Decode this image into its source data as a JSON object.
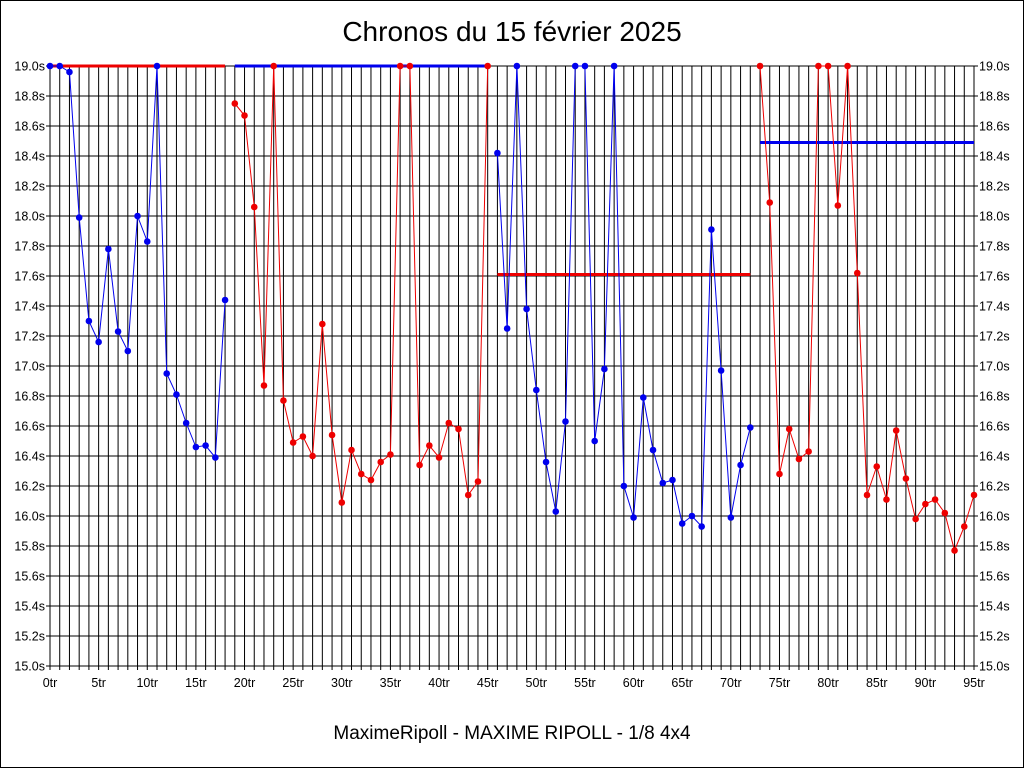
{
  "chart_data": {
    "type": "line",
    "title": "Chronos du 15 février 2025",
    "caption": "MaximeRipoll - MAXIME RIPOLL - 1/8 4x4",
    "x_unit": "tr",
    "y_unit": "s",
    "xlim": [
      0,
      95
    ],
    "ylim": [
      15.0,
      19.0
    ],
    "x_ticks": [
      0,
      5,
      10,
      15,
      20,
      25,
      30,
      35,
      40,
      45,
      50,
      55,
      60,
      65,
      70,
      75,
      80,
      85,
      90,
      95
    ],
    "y_ticks": [
      15.0,
      15.2,
      15.4,
      15.6,
      15.8,
      16.0,
      16.2,
      16.4,
      16.6,
      16.8,
      17.0,
      17.2,
      17.4,
      17.6,
      17.8,
      18.0,
      18.2,
      18.4,
      18.6,
      18.8,
      19.0
    ],
    "grid": true,
    "colors": {
      "red": "#ee0000",
      "blue": "#0000ee"
    },
    "series": [
      {
        "color": "blue",
        "x": [
          0,
          1,
          2,
          3,
          4,
          5,
          6,
          7,
          8,
          9,
          10,
          11,
          12,
          13,
          14,
          15,
          16,
          17,
          18
        ],
        "y": [
          19.0,
          19.0,
          18.96,
          17.99,
          17.3,
          17.16,
          17.78,
          17.23,
          17.1,
          18.0,
          17.83,
          19.0,
          16.95,
          16.81,
          16.62,
          16.46,
          16.47,
          16.39,
          17.44
        ]
      },
      {
        "color": "red",
        "x": [
          19,
          20,
          21,
          22,
          23,
          24,
          25,
          26,
          27,
          28,
          29,
          30,
          31,
          32,
          33,
          34,
          35,
          36,
          37,
          38,
          39,
          40,
          41,
          42,
          43,
          44,
          45
        ],
        "y": [
          18.75,
          18.67,
          18.06,
          16.87,
          19.0,
          16.77,
          16.49,
          16.53,
          16.4,
          17.28,
          16.54,
          16.09,
          16.44,
          16.28,
          16.24,
          16.36,
          16.41,
          19.0,
          19.0,
          16.34,
          16.47,
          16.39,
          16.62,
          16.58,
          16.14,
          16.23,
          19.0
        ]
      },
      {
        "color": "blue",
        "x": [
          46,
          47,
          48,
          49,
          50,
          51,
          52,
          53,
          54,
          55,
          56,
          57,
          58,
          59,
          60,
          61,
          62,
          63,
          64,
          65,
          66,
          67,
          68,
          69,
          70,
          71,
          72
        ],
        "y": [
          18.42,
          17.25,
          19.0,
          17.38,
          16.84,
          16.36,
          16.03,
          16.63,
          19.0,
          19.0,
          16.5,
          16.98,
          19.0,
          16.2,
          15.99,
          16.79,
          16.44,
          16.22,
          16.24,
          15.95,
          16.0,
          15.93,
          17.91,
          16.97,
          15.99,
          16.34,
          16.59
        ]
      },
      {
        "color": "red",
        "x": [
          73,
          74,
          75,
          76,
          77,
          78,
          79,
          80,
          81,
          82,
          83,
          84,
          85,
          86,
          87,
          88,
          89,
          90,
          91,
          92,
          93,
          94,
          95
        ],
        "y": [
          19.0,
          18.09,
          16.28,
          16.58,
          16.38,
          16.43,
          19.0,
          19.0,
          18.07,
          19.0,
          17.62,
          16.14,
          16.33,
          16.11,
          16.57,
          16.25,
          15.98,
          16.08,
          16.11,
          16.02,
          15.77,
          15.93,
          16.14
        ]
      }
    ],
    "reference_lines": [
      {
        "color": "red",
        "y": 19.0,
        "x_start": 0,
        "x_end": 18
      },
      {
        "color": "blue",
        "y": 19.0,
        "x_start": 19,
        "x_end": 45
      },
      {
        "color": "red",
        "y": 17.61,
        "x_start": 46,
        "x_end": 72
      },
      {
        "color": "blue",
        "y": 18.49,
        "x_start": 73,
        "x_end": 95
      }
    ]
  }
}
